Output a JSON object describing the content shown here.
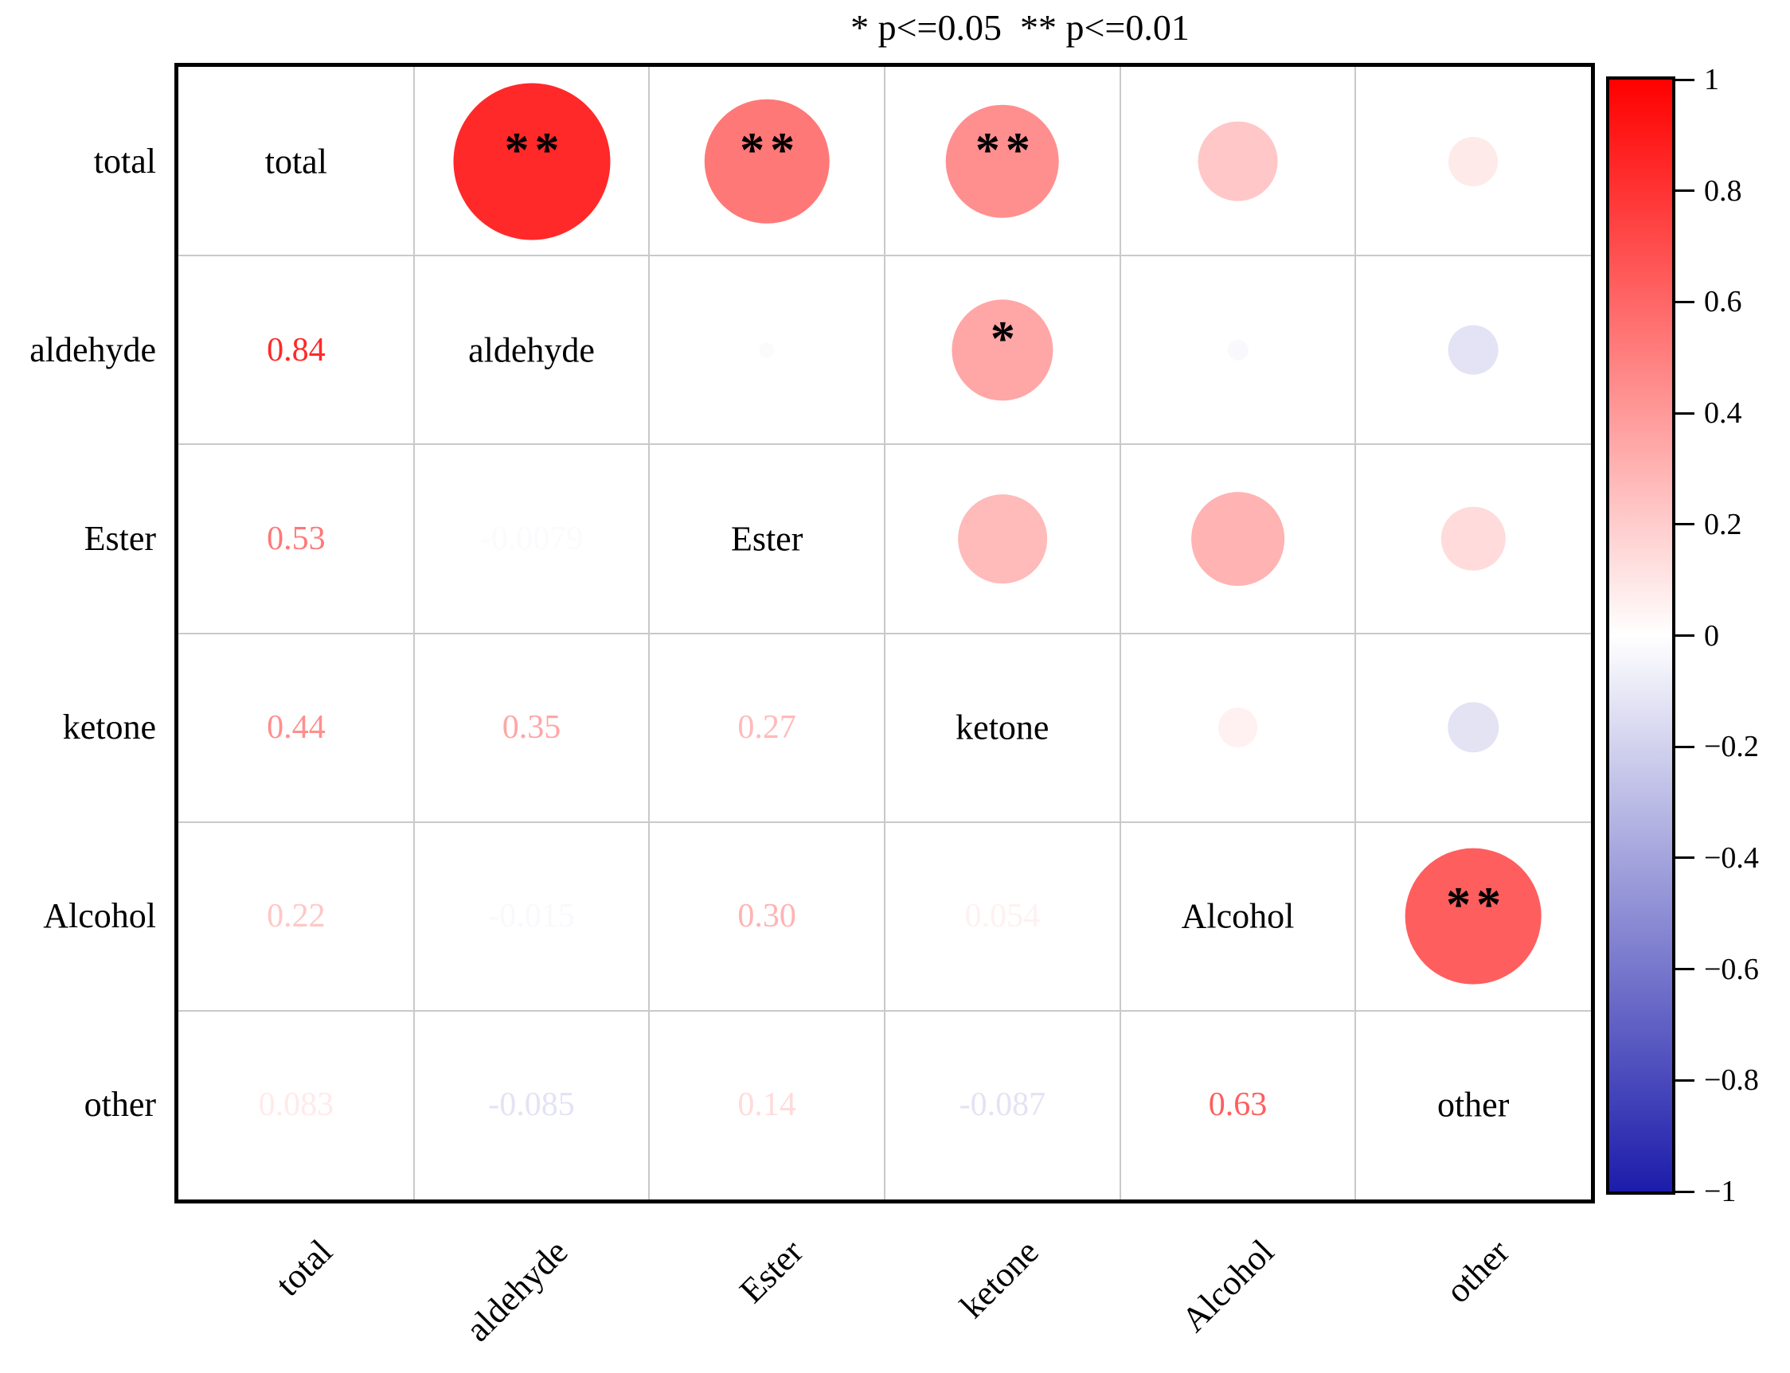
{
  "chart_data": {
    "type": "correlation-matrix-bubble",
    "title": "* p<=0.05  ** p<=0.01",
    "significance_legend": {
      "one_star": "p<=0.05",
      "two_stars": "p<=0.01"
    },
    "variables": [
      "total",
      "aldehyde",
      "Ester",
      "ketone",
      "Alcohol",
      "other"
    ],
    "layout_hint": {
      "upper_triangle": "circles sized and colored by correlation, significance stars overlaid",
      "lower_triangle": "numeric correlation values colored by correlation",
      "diagonal": "variable names",
      "colorbar_position": "right"
    },
    "pairs": [
      {
        "row_var": "total",
        "col_var": "aldehyde",
        "r": 0.84,
        "label": "0.84",
        "significance": "**"
      },
      {
        "row_var": "total",
        "col_var": "Ester",
        "r": 0.53,
        "label": "0.53",
        "significance": "**"
      },
      {
        "row_var": "total",
        "col_var": "ketone",
        "r": 0.44,
        "label": "0.44",
        "significance": "**"
      },
      {
        "row_var": "total",
        "col_var": "Alcohol",
        "r": 0.22,
        "label": "0.22",
        "significance": ""
      },
      {
        "row_var": "total",
        "col_var": "other",
        "r": 0.083,
        "label": "0.083",
        "significance": ""
      },
      {
        "row_var": "aldehyde",
        "col_var": "Ester",
        "r": -0.0079,
        "label": "-0.0079",
        "significance": ""
      },
      {
        "row_var": "aldehyde",
        "col_var": "ketone",
        "r": 0.35,
        "label": "0.35",
        "significance": "*"
      },
      {
        "row_var": "aldehyde",
        "col_var": "Alcohol",
        "r": -0.015,
        "label": "-0.015",
        "significance": ""
      },
      {
        "row_var": "aldehyde",
        "col_var": "other",
        "r": -0.085,
        "label": "-0.085",
        "significance": ""
      },
      {
        "row_var": "Ester",
        "col_var": "ketone",
        "r": 0.27,
        "label": "0.27",
        "significance": ""
      },
      {
        "row_var": "Ester",
        "col_var": "Alcohol",
        "r": 0.3,
        "label": "0.30",
        "significance": ""
      },
      {
        "row_var": "Ester",
        "col_var": "other",
        "r": 0.14,
        "label": "0.14",
        "significance": ""
      },
      {
        "row_var": "ketone",
        "col_var": "Alcohol",
        "r": 0.054,
        "label": "0.054",
        "significance": ""
      },
      {
        "row_var": "ketone",
        "col_var": "other",
        "r": -0.087,
        "label": "-0.087",
        "significance": ""
      },
      {
        "row_var": "Alcohol",
        "col_var": "other",
        "r": 0.63,
        "label": "0.63",
        "significance": "**"
      }
    ],
    "colorbar": {
      "min": -1,
      "max": 1,
      "tick_values": [
        1,
        0.8,
        0.6,
        0.4,
        0.2,
        0,
        -0.2,
        -0.4,
        -0.6,
        -0.8,
        -1
      ],
      "tick_labels": [
        "1",
        "0.8",
        "0.6",
        "0.4",
        "0.2",
        "0",
        "−0.2",
        "−0.4",
        "−0.6",
        "−0.8",
        "−1"
      ],
      "positive_color": "#FF0000",
      "zero_color": "#FFFFFF",
      "negative_color": "#1C1CAB"
    }
  }
}
